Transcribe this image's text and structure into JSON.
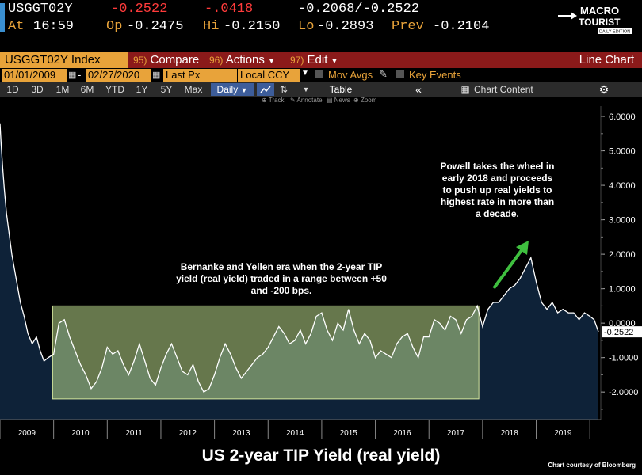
{
  "header": {
    "ticker": "USGGT02Y",
    "last": "-0.2522",
    "change": "-.0418",
    "bid_ask": "-0.2068/-0.2522",
    "at_label": "At",
    "time": "16:59",
    "op_label": "Op",
    "open": "-0.2475",
    "hi_label": "Hi",
    "high": "-0.2150",
    "lo_label": "Lo",
    "low": "-0.2893",
    "prev_label": "Prev",
    "prev": "-0.2104"
  },
  "logo": {
    "line1": "MACRO",
    "line2": "TOURIST",
    "tag": "DAILY EDITION"
  },
  "toolbar": {
    "security": "USGGT02Y Index",
    "compare_num": "95)",
    "compare": "Compare",
    "actions_num": "96)",
    "actions": "Actions",
    "edit_num": "97)",
    "edit": "Edit",
    "chart_type": "Line Chart",
    "start_date": "01/01/2009",
    "end_date": "02/27/2020",
    "field": "Last Px",
    "currency": "Local CCY",
    "mov_avgs": "Mov Avgs",
    "key_events": "Key Events",
    "periods": [
      "1D",
      "3D",
      "1M",
      "6M",
      "YTD",
      "1Y",
      "5Y",
      "Max"
    ],
    "frequency": "Daily",
    "table": "Table",
    "chart_content": "Chart Content",
    "subtools": [
      "Track",
      "Annotate",
      "News",
      "Zoom"
    ]
  },
  "annotations": {
    "box_text": "Bernanke and Yellen era when the 2-year TIP yield (real yield) traded in a range between +50 and -200 bps.",
    "powell_text": "Powell takes the wheel in early 2018 and proceeds to push up real yields to highest rate in more than a decade."
  },
  "title": "US 2-year TIP Yield (real yield)",
  "credit": "Chart courtesy of Bloomberg",
  "colors": {
    "accent_orange": "#e8a33a",
    "toolbar_red": "#8b1a1a",
    "fill": "#0e2238",
    "band": "#b9d88a",
    "arrow": "#3fbf3f"
  },
  "chart_data": {
    "type": "area",
    "title": "US 2-year TIP Yield (real yield)",
    "xlabel": "",
    "ylabel": "",
    "ylim": [
      -2.8,
      6.3
    ],
    "xlim": [
      2009.0,
      2020.16
    ],
    "y_ticks": [
      "6.0000",
      "5.0000",
      "4.0000",
      "3.0000",
      "2.0000",
      "1.0000",
      "0.0000",
      "-1.0000",
      "-2.0000"
    ],
    "x_ticks": [
      "2009",
      "2010",
      "2011",
      "2012",
      "2013",
      "2014",
      "2015",
      "2016",
      "2017",
      "2018",
      "2019"
    ],
    "last_value_label": "-0.2522",
    "range_band": {
      "from_year": 2009.98,
      "to_year": 2017.93,
      "y_low": -2.2,
      "y_high": 0.5
    },
    "series": [
      {
        "name": "USGGT02Y Index",
        "x": [
          2009.0,
          2009.02,
          2009.05,
          2009.08,
          2009.12,
          2009.17,
          2009.22,
          2009.3,
          2009.38,
          2009.45,
          2009.52,
          2009.6,
          2009.68,
          2009.75,
          2009.82,
          2009.9,
          2010.0,
          2010.1,
          2010.2,
          2010.3,
          2010.4,
          2010.5,
          2010.6,
          2010.7,
          2010.8,
          2010.9,
          2011.0,
          2011.1,
          2011.2,
          2011.3,
          2011.4,
          2011.5,
          2011.6,
          2011.7,
          2011.8,
          2011.9,
          2012.0,
          2012.1,
          2012.2,
          2012.3,
          2012.4,
          2012.5,
          2012.6,
          2012.7,
          2012.8,
          2012.9,
          2013.0,
          2013.1,
          2013.2,
          2013.3,
          2013.4,
          2013.5,
          2013.6,
          2013.7,
          2013.8,
          2013.9,
          2014.0,
          2014.1,
          2014.2,
          2014.3,
          2014.4,
          2014.5,
          2014.6,
          2014.7,
          2014.8,
          2014.9,
          2015.0,
          2015.1,
          2015.2,
          2015.3,
          2015.4,
          2015.5,
          2015.6,
          2015.7,
          2015.8,
          2015.9,
          2016.0,
          2016.1,
          2016.2,
          2016.3,
          2016.4,
          2016.5,
          2016.6,
          2016.7,
          2016.8,
          2016.9,
          2017.0,
          2017.1,
          2017.2,
          2017.3,
          2017.4,
          2017.5,
          2017.6,
          2017.7,
          2017.8,
          2017.9,
          2018.0,
          2018.1,
          2018.2,
          2018.3,
          2018.4,
          2018.5,
          2018.6,
          2018.7,
          2018.8,
          2018.9,
          2019.0,
          2019.1,
          2019.2,
          2019.3,
          2019.4,
          2019.5,
          2019.6,
          2019.7,
          2019.8,
          2019.9,
          2020.0,
          2020.08,
          2020.16
        ],
        "values": [
          5.8,
          5.2,
          4.5,
          3.9,
          3.2,
          2.6,
          2.0,
          1.3,
          0.6,
          0.2,
          -0.3,
          -0.6,
          -0.4,
          -0.8,
          -1.1,
          -1.0,
          -0.9,
          0.0,
          0.1,
          -0.4,
          -0.8,
          -1.2,
          -1.5,
          -1.9,
          -1.7,
          -1.3,
          -0.7,
          -0.9,
          -0.8,
          -1.2,
          -1.5,
          -1.1,
          -0.6,
          -1.1,
          -1.6,
          -1.8,
          -1.3,
          -0.9,
          -0.6,
          -1.0,
          -1.4,
          -1.5,
          -1.2,
          -1.7,
          -2.0,
          -1.9,
          -1.5,
          -1.0,
          -0.6,
          -0.9,
          -1.3,
          -1.6,
          -1.4,
          -1.2,
          -1.0,
          -0.9,
          -0.7,
          -0.4,
          -0.1,
          -0.3,
          -0.6,
          -0.5,
          -0.2,
          -0.6,
          -0.3,
          0.2,
          0.3,
          -0.2,
          -0.5,
          0.0,
          -0.2,
          0.4,
          -0.2,
          -0.6,
          -0.3,
          -0.5,
          -1.0,
          -0.8,
          -0.9,
          -1.0,
          -0.6,
          -0.4,
          -0.3,
          -0.7,
          -1.0,
          -0.4,
          -0.4,
          0.1,
          0.0,
          -0.2,
          0.2,
          0.1,
          -0.3,
          0.1,
          0.2,
          0.5,
          -0.1,
          0.4,
          0.6,
          0.6,
          0.8,
          1.0,
          1.1,
          1.3,
          1.6,
          1.9,
          1.2,
          0.6,
          0.4,
          0.6,
          0.3,
          0.4,
          0.3,
          0.3,
          0.1,
          0.3,
          0.2,
          0.1,
          -0.25
        ]
      }
    ]
  }
}
